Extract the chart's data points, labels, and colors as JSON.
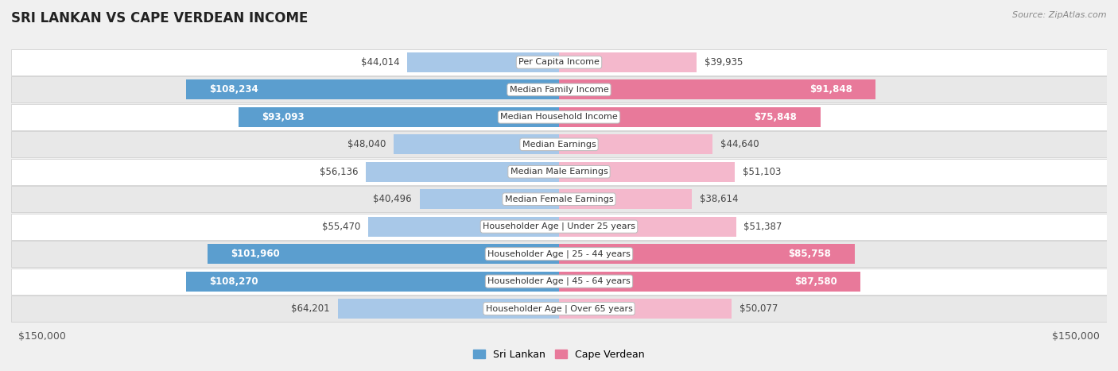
{
  "title": "SRI LANKAN VS CAPE VERDEAN INCOME",
  "source": "Source: ZipAtlas.com",
  "categories": [
    "Per Capita Income",
    "Median Family Income",
    "Median Household Income",
    "Median Earnings",
    "Median Male Earnings",
    "Median Female Earnings",
    "Householder Age | Under 25 years",
    "Householder Age | 25 - 44 years",
    "Householder Age | 45 - 64 years",
    "Householder Age | Over 65 years"
  ],
  "sri_lankan": [
    44014,
    108234,
    93093,
    48040,
    56136,
    40496,
    55470,
    101960,
    108270,
    64201
  ],
  "cape_verdean": [
    39935,
    91848,
    75848,
    44640,
    51103,
    38614,
    51387,
    85758,
    87580,
    50077
  ],
  "sri_lankan_labels": [
    "$44,014",
    "$108,234",
    "$93,093",
    "$48,040",
    "$56,136",
    "$40,496",
    "$55,470",
    "$101,960",
    "$108,270",
    "$64,201"
  ],
  "cape_verdean_labels": [
    "$39,935",
    "$91,848",
    "$75,848",
    "$44,640",
    "$51,103",
    "$38,614",
    "$51,387",
    "$85,758",
    "$87,580",
    "$50,077"
  ],
  "max_val": 150000,
  "sri_lankan_color_light": "#a8c8e8",
  "sri_lankan_color_dark": "#5b9ecf",
  "cape_verdean_color_light": "#f4b8cc",
  "cape_verdean_color_dark": "#e8799a",
  "background_color": "#f0f0f0",
  "row_bg_even": "#ffffff",
  "row_bg_odd": "#e8e8e8",
  "label_inside_threshold": 65000,
  "label_fontsize": 8.5,
  "cat_fontsize": 8.0
}
